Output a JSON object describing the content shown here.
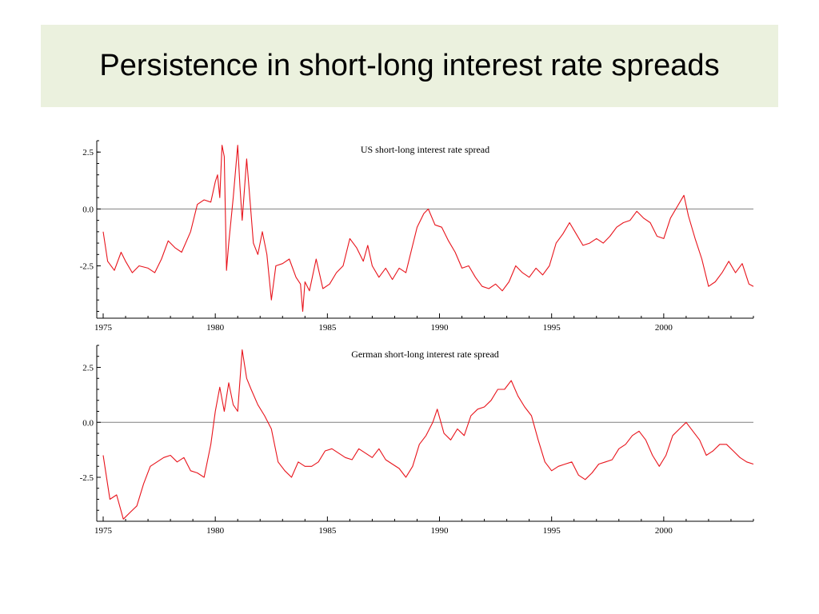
{
  "slide": {
    "title": "Persistence in short-long interest rate spreads"
  },
  "colors": {
    "banner": "#ebf1de",
    "series": "#e8141c",
    "zero_line": "#808080",
    "axis": "#000000"
  },
  "chart_data": [
    {
      "type": "line",
      "title": "US short-long interest rate spread",
      "xlabel": "",
      "ylabel": "",
      "xlim": [
        1975,
        2004
      ],
      "ylim": [
        -4.8,
        3.0
      ],
      "x_ticks": [
        1975,
        1980,
        1985,
        1990,
        1995,
        2000
      ],
      "y_ticks": [
        2.5,
        0.0,
        -2.5
      ],
      "y_tick_labels": [
        "2.5",
        "0.0",
        "-2.5"
      ],
      "zero_line": true,
      "grid": false,
      "legend": "none",
      "series": [
        {
          "x": [
            1975.0,
            1975.2,
            1975.5,
            1975.8,
            1976.0,
            1976.3,
            1976.6,
            1977.0,
            1977.3,
            1977.6,
            1977.9,
            1978.2,
            1978.5,
            1978.9,
            1979.2,
            1979.5,
            1979.8,
            1980.0,
            1980.1,
            1980.2,
            1980.3,
            1980.4,
            1980.5,
            1980.6,
            1980.8,
            1981.0,
            1981.1,
            1981.2,
            1981.4,
            1981.5,
            1981.7,
            1981.9,
            1982.1,
            1982.3,
            1982.5,
            1982.7,
            1983.0,
            1983.3,
            1983.6,
            1983.8,
            1983.9,
            1984.0,
            1984.2,
            1984.5,
            1984.8,
            1985.1,
            1985.4,
            1985.7,
            1986.0,
            1986.3,
            1986.6,
            1986.8,
            1987.0,
            1987.3,
            1987.6,
            1987.9,
            1988.2,
            1988.5,
            1988.8,
            1989.0,
            1989.3,
            1989.5,
            1989.8,
            1990.1,
            1990.4,
            1990.7,
            1991.0,
            1991.3,
            1991.6,
            1991.9,
            1992.2,
            1992.5,
            1992.8,
            1993.1,
            1993.4,
            1993.7,
            1994.0,
            1994.3,
            1994.6,
            1994.9,
            1995.2,
            1995.5,
            1995.8,
            1996.1,
            1996.4,
            1996.7,
            1997.0,
            1997.3,
            1997.6,
            1997.9,
            1998.2,
            1998.5,
            1998.8,
            1999.1,
            1999.4,
            1999.7,
            2000.0,
            2000.3,
            2000.6,
            2000.9,
            2001.1,
            2001.4,
            2001.7,
            2002.0,
            2002.3,
            2002.6,
            2002.9,
            2003.2,
            2003.5,
            2003.8,
            2004.0
          ],
          "y": [
            -1.0,
            -2.3,
            -2.7,
            -1.9,
            -2.3,
            -2.8,
            -2.5,
            -2.6,
            -2.8,
            -2.2,
            -1.4,
            -1.7,
            -1.9,
            -1.0,
            0.2,
            0.4,
            0.3,
            1.2,
            1.5,
            0.5,
            2.8,
            2.3,
            -2.7,
            -1.5,
            0.5,
            2.8,
            1.0,
            -0.5,
            2.2,
            1.0,
            -1.5,
            -2.0,
            -1.0,
            -2.0,
            -4.0,
            -2.5,
            -2.4,
            -2.2,
            -3.0,
            -3.3,
            -4.5,
            -3.2,
            -3.6,
            -2.2,
            -3.5,
            -3.3,
            -2.8,
            -2.5,
            -1.3,
            -1.7,
            -2.3,
            -1.6,
            -2.5,
            -3.0,
            -2.6,
            -3.1,
            -2.6,
            -2.8,
            -1.6,
            -0.8,
            -0.2,
            0.0,
            -0.7,
            -0.8,
            -1.4,
            -1.9,
            -2.6,
            -2.5,
            -3.0,
            -3.4,
            -3.5,
            -3.3,
            -3.6,
            -3.2,
            -2.5,
            -2.8,
            -3.0,
            -2.6,
            -2.9,
            -2.5,
            -1.5,
            -1.1,
            -0.6,
            -1.1,
            -1.6,
            -1.5,
            -1.3,
            -1.5,
            -1.2,
            -0.8,
            -0.6,
            -0.5,
            -0.1,
            -0.4,
            -0.6,
            -1.2,
            -1.3,
            -0.4,
            0.1,
            0.6,
            -0.3,
            -1.3,
            -2.2,
            -3.4,
            -3.2,
            -2.8,
            -2.3,
            -2.8,
            -2.4,
            -3.3,
            -3.4
          ]
        }
      ]
    },
    {
      "type": "line",
      "title": "German short-long interest rate spread",
      "xlabel": "",
      "ylabel": "",
      "xlim": [
        1975,
        2004
      ],
      "ylim": [
        -4.5,
        3.5
      ],
      "x_ticks": [
        1975,
        1980,
        1985,
        1990,
        1995,
        2000
      ],
      "y_ticks": [
        2.5,
        0.0,
        -2.5
      ],
      "y_tick_labels": [
        "2.5",
        "0.0",
        "-2.5"
      ],
      "zero_line": true,
      "grid": false,
      "legend": "none",
      "series": [
        {
          "x": [
            1975.0,
            1975.3,
            1975.6,
            1975.9,
            1976.2,
            1976.5,
            1976.8,
            1977.1,
            1977.4,
            1977.7,
            1978.0,
            1978.3,
            1978.6,
            1978.9,
            1979.2,
            1979.5,
            1979.8,
            1980.0,
            1980.2,
            1980.4,
            1980.6,
            1980.8,
            1981.0,
            1981.2,
            1981.4,
            1981.6,
            1981.9,
            1982.2,
            1982.5,
            1982.8,
            1983.1,
            1983.4,
            1983.7,
            1984.0,
            1984.3,
            1984.6,
            1984.9,
            1985.2,
            1985.5,
            1985.8,
            1986.1,
            1986.4,
            1986.7,
            1987.0,
            1987.3,
            1987.6,
            1987.9,
            1988.2,
            1988.5,
            1988.8,
            1989.1,
            1989.4,
            1989.7,
            1989.9,
            1990.2,
            1990.5,
            1990.8,
            1991.1,
            1991.4,
            1991.7,
            1992.0,
            1992.3,
            1992.6,
            1992.9,
            1993.2,
            1993.5,
            1993.8,
            1994.1,
            1994.4,
            1994.7,
            1995.0,
            1995.3,
            1995.6,
            1995.9,
            1996.2,
            1996.5,
            1996.8,
            1997.1,
            1997.4,
            1997.7,
            1998.0,
            1998.3,
            1998.6,
            1998.9,
            1999.2,
            1999.5,
            1999.8,
            2000.1,
            2000.4,
            2000.7,
            2001.0,
            2001.3,
            2001.6,
            2001.9,
            2002.2,
            2002.5,
            2002.8,
            2003.1,
            2003.4,
            2003.7,
            2004.0
          ],
          "y": [
            -1.5,
            -3.5,
            -3.3,
            -4.4,
            -4.1,
            -3.8,
            -2.8,
            -2.0,
            -1.8,
            -1.6,
            -1.5,
            -1.8,
            -1.6,
            -2.2,
            -2.3,
            -2.5,
            -1.0,
            0.5,
            1.6,
            0.5,
            1.8,
            0.8,
            0.5,
            3.3,
            2.0,
            1.5,
            0.8,
            0.3,
            -0.3,
            -1.8,
            -2.2,
            -2.5,
            -1.8,
            -2.0,
            -2.0,
            -1.8,
            -1.3,
            -1.2,
            -1.4,
            -1.6,
            -1.7,
            -1.2,
            -1.4,
            -1.6,
            -1.2,
            -1.7,
            -1.9,
            -2.1,
            -2.5,
            -2.0,
            -1.0,
            -0.6,
            0.0,
            0.6,
            -0.5,
            -0.8,
            -0.3,
            -0.6,
            0.3,
            0.6,
            0.7,
            1.0,
            1.5,
            1.5,
            1.9,
            1.2,
            0.7,
            0.3,
            -0.8,
            -1.8,
            -2.2,
            -2.0,
            -1.9,
            -1.8,
            -2.4,
            -2.6,
            -2.3,
            -1.9,
            -1.8,
            -1.7,
            -1.2,
            -1.0,
            -0.6,
            -0.4,
            -0.8,
            -1.5,
            -2.0,
            -1.5,
            -0.6,
            -0.3,
            0.0,
            -0.4,
            -0.8,
            -1.5,
            -1.3,
            -1.0,
            -1.0,
            -1.3,
            -1.6,
            -1.8,
            -1.9
          ]
        }
      ]
    }
  ]
}
